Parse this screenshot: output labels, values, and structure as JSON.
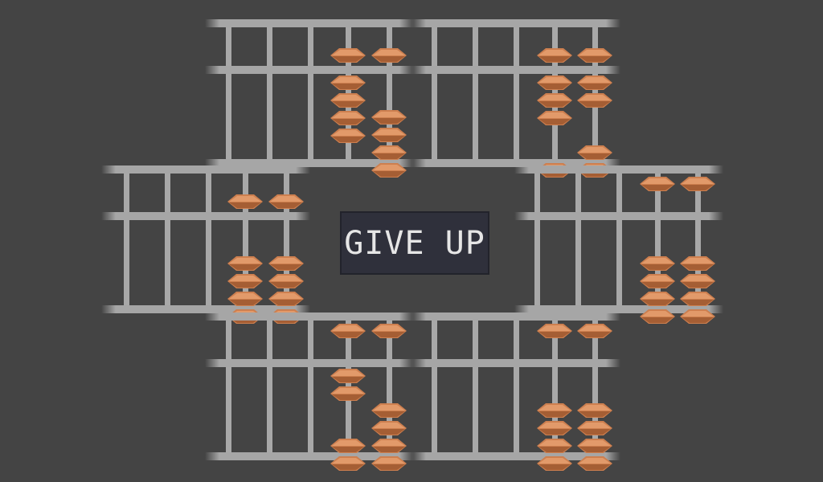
{
  "screen": {
    "background": "#444444"
  },
  "give_up_label": "GIVE UP",
  "colors": {
    "bead": "#cd7f4f",
    "bead_highlight": "#e29a6a",
    "bead_shadow": "#a55e34",
    "frame": "#a6a6a6",
    "button_bg": "#2f303b",
    "button_text": "#e6e6e6"
  },
  "abacuses": [
    {
      "id": "top-left",
      "beads": [
        [
          0,
          0
        ],
        [
          0,
          0
        ],
        [
          0,
          0
        ],
        [
          1,
          4
        ],
        [
          1,
          0
        ]
      ]
    },
    {
      "id": "top-right",
      "beads": [
        [
          0,
          0
        ],
        [
          0,
          0
        ],
        [
          0,
          0
        ],
        [
          1,
          3
        ],
        [
          1,
          2
        ]
      ]
    },
    {
      "id": "middle-left",
      "beads": [
        [
          0,
          0
        ],
        [
          0,
          0
        ],
        [
          0,
          0
        ],
        [
          1,
          0
        ],
        [
          1,
          0
        ]
      ]
    },
    {
      "id": "middle-right",
      "beads": [
        [
          0,
          0
        ],
        [
          0,
          0
        ],
        [
          0,
          0
        ],
        [
          0,
          0
        ],
        [
          0,
          0
        ]
      ]
    },
    {
      "id": "bottom-left",
      "beads": [
        [
          0,
          0
        ],
        [
          0,
          0
        ],
        [
          0,
          0
        ],
        [
          0,
          2
        ],
        [
          0,
          0
        ]
      ]
    },
    {
      "id": "bottom-right",
      "beads": [
        [
          0,
          0
        ],
        [
          0,
          0
        ],
        [
          0,
          0
        ],
        [
          0,
          0
        ],
        [
          0,
          0
        ]
      ]
    }
  ]
}
